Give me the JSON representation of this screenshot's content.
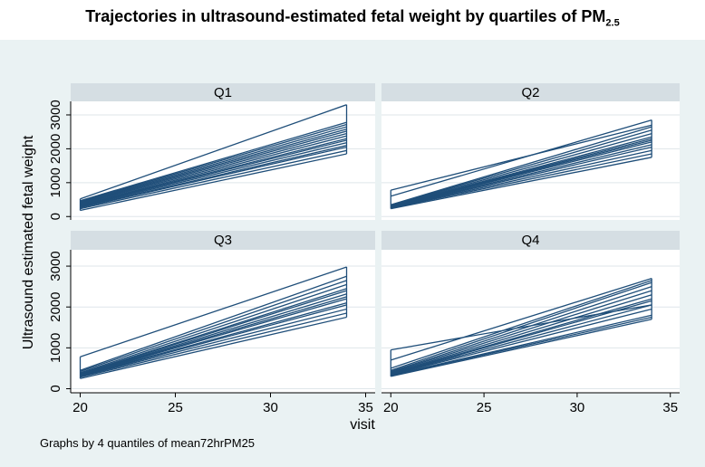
{
  "title_main": "Trajectories in ultrasound-estimated fetal weight by quartiles of PM",
  "title_sub": "2.5",
  "colors": {
    "line": "#1f4e79",
    "background": "#eaf2f3",
    "strip": "#d5dee3",
    "panel": "#ffffff",
    "grid": "#dfe6ea"
  },
  "chart_data": {
    "type": "line",
    "title": "Trajectories in ultrasound-estimated fetal weight by quartiles of PM2.5",
    "xlabel": "visit",
    "ylabel": "Ultrasound estimated fetal weight",
    "note": "Graphs by 4 quantiles of mean72hrPM25",
    "xlim": [
      19.5,
      35.5
    ],
    "ylim": [
      -100,
      3400
    ],
    "xticks": [
      20,
      25,
      30,
      35
    ],
    "yticks": [
      0,
      1000,
      2000,
      3000
    ],
    "panels": [
      {
        "label": "Q1",
        "series": [
          {
            "x": [
              20,
              34
            ],
            "y": [
              180,
              1850
            ]
          },
          {
            "x": [
              20,
              34
            ],
            "y": [
              230,
              1950
            ]
          },
          {
            "x": [
              20,
              34
            ],
            "y": [
              260,
              2050
            ]
          },
          {
            "x": [
              20,
              34
            ],
            "y": [
              280,
              2100
            ]
          },
          {
            "x": [
              20,
              34
            ],
            "y": [
              300,
              2180
            ]
          },
          {
            "x": [
              20,
              34
            ],
            "y": [
              320,
              2250
            ]
          },
          {
            "x": [
              20,
              34
            ],
            "y": [
              340,
              2300
            ]
          },
          {
            "x": [
              20,
              34
            ],
            "y": [
              350,
              2380
            ]
          },
          {
            "x": [
              20,
              34
            ],
            "y": [
              370,
              2450
            ]
          },
          {
            "x": [
              20,
              34
            ],
            "y": [
              390,
              2520
            ]
          },
          {
            "x": [
              20,
              34
            ],
            "y": [
              410,
              2580
            ]
          },
          {
            "x": [
              20,
              34
            ],
            "y": [
              430,
              2650
            ]
          },
          {
            "x": [
              20,
              34
            ],
            "y": [
              450,
              2720
            ]
          },
          {
            "x": [
              20,
              34
            ],
            "y": [
              470,
              2780
            ]
          },
          {
            "x": [
              20,
              34
            ],
            "y": [
              520,
              3300
            ]
          }
        ]
      },
      {
        "label": "Q2",
        "series": [
          {
            "x": [
              20,
              34
            ],
            "y": [
              230,
              1750
            ]
          },
          {
            "x": [
              20,
              34
            ],
            "y": [
              250,
              1850
            ]
          },
          {
            "x": [
              20,
              34
            ],
            "y": [
              260,
              1950
            ]
          },
          {
            "x": [
              20,
              34
            ],
            "y": [
              270,
              2050
            ]
          },
          {
            "x": [
              20,
              34
            ],
            "y": [
              280,
              2120
            ]
          },
          {
            "x": [
              20,
              34
            ],
            "y": [
              290,
              2200
            ]
          },
          {
            "x": [
              20,
              34
            ],
            "y": [
              300,
              2250
            ]
          },
          {
            "x": [
              20,
              34
            ],
            "y": [
              310,
              2300
            ]
          },
          {
            "x": [
              20,
              34
            ],
            "y": [
              320,
              2350
            ]
          },
          {
            "x": [
              20,
              34
            ],
            "y": [
              330,
              2450
            ]
          },
          {
            "x": [
              20,
              34
            ],
            "y": [
              340,
              2550
            ]
          },
          {
            "x": [
              20,
              34
            ],
            "y": [
              350,
              2650
            ]
          },
          {
            "x": [
              20,
              34
            ],
            "y": [
              600,
              2850
            ]
          },
          {
            "x": [
              20,
              34
            ],
            "y": [
              780,
              2700
            ]
          }
        ]
      },
      {
        "label": "Q3",
        "series": [
          {
            "x": [
              20,
              34
            ],
            "y": [
              250,
              1750
            ]
          },
          {
            "x": [
              20,
              34
            ],
            "y": [
              280,
              1850
            ]
          },
          {
            "x": [
              20,
              34
            ],
            "y": [
              300,
              1950
            ]
          },
          {
            "x": [
              20,
              34
            ],
            "y": [
              310,
              2050
            ]
          },
          {
            "x": [
              20,
              34
            ],
            "y": [
              320,
              2100
            ]
          },
          {
            "x": [
              20,
              34
            ],
            "y": [
              330,
              2200
            ]
          },
          {
            "x": [
              20,
              34
            ],
            "y": [
              340,
              2250
            ]
          },
          {
            "x": [
              20,
              34
            ],
            "y": [
              350,
              2320
            ]
          },
          {
            "x": [
              20,
              34
            ],
            "y": [
              360,
              2400
            ]
          },
          {
            "x": [
              20,
              34
            ],
            "y": [
              370,
              2450
            ]
          },
          {
            "x": [
              20,
              34
            ],
            "y": [
              390,
              2550
            ]
          },
          {
            "x": [
              20,
              34
            ],
            "y": [
              420,
              2650
            ]
          },
          {
            "x": [
              20,
              34
            ],
            "y": [
              450,
              2750
            ]
          },
          {
            "x": [
              20,
              34
            ],
            "y": [
              780,
              2980
            ]
          }
        ]
      },
      {
        "label": "Q4",
        "series": [
          {
            "x": [
              20,
              34
            ],
            "y": [
              300,
              1700
            ]
          },
          {
            "x": [
              20,
              34
            ],
            "y": [
              320,
              1750
            ]
          },
          {
            "x": [
              20,
              34
            ],
            "y": [
              330,
              1800
            ]
          },
          {
            "x": [
              20,
              34
            ],
            "y": [
              340,
              1950
            ]
          },
          {
            "x": [
              20,
              34
            ],
            "y": [
              350,
              2050
            ]
          },
          {
            "x": [
              20,
              34
            ],
            "y": [
              360,
              2150
            ]
          },
          {
            "x": [
              20,
              34
            ],
            "y": [
              370,
              2200
            ]
          },
          {
            "x": [
              20,
              34
            ],
            "y": [
              380,
              2300
            ]
          },
          {
            "x": [
              20,
              34
            ],
            "y": [
              400,
              2400
            ]
          },
          {
            "x": [
              20,
              34
            ],
            "y": [
              420,
              2500
            ]
          },
          {
            "x": [
              20,
              34
            ],
            "y": [
              450,
              2600
            ]
          },
          {
            "x": [
              20,
              34
            ],
            "y": [
              500,
              2650
            ]
          },
          {
            "x": [
              20,
              34
            ],
            "y": [
              700,
              2700
            ]
          },
          {
            "x": [
              20,
              34
            ],
            "y": [
              950,
              2050
            ]
          }
        ]
      }
    ]
  }
}
